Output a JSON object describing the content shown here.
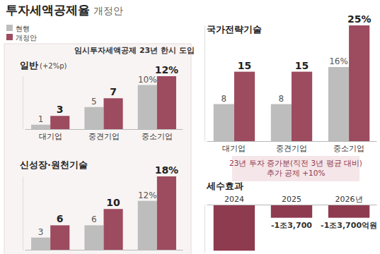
{
  "header": {
    "title": "투자세액공제율",
    "subtitle": "개정안",
    "banner": "임시투자세액공제 23년 한시 도입"
  },
  "chart_data": [
    {
      "type": "bar",
      "title": "일반",
      "subtitle": "(+2%p)",
      "categories": [
        "대기업",
        "중견기업",
        "중소기업"
      ],
      "series": [
        {
          "name": "현행",
          "color": "#bdbdbd",
          "values": [
            1,
            5,
            10
          ],
          "value_labels": [
            "1",
            "5",
            "10%"
          ]
        },
        {
          "name": "개정안",
          "color": "#9d4b5f",
          "values": [
            3,
            7,
            12
          ],
          "value_labels": [
            "3",
            "7",
            "12%"
          ]
        }
      ],
      "ylim": [
        0,
        12
      ],
      "data_labels": true,
      "tick_labels": "x",
      "legend": "top-left"
    },
    {
      "type": "bar",
      "title": "신성장·원천기술",
      "categories": [
        null,
        null,
        null
      ],
      "series": [
        {
          "color": "#bdbdbd",
          "values": [
            3,
            6,
            12
          ],
          "value_labels": [
            "3",
            "6",
            "12%"
          ]
        },
        {
          "color": "#9d4b5f",
          "values": [
            6,
            10,
            18
          ],
          "value_labels": [
            "6",
            "10",
            "18%"
          ]
        }
      ],
      "ylim": [
        0,
        18
      ],
      "data_labels": true,
      "tick_labels": false
    },
    {
      "type": "bar",
      "title": "국가전략기술",
      "categories": [
        "대기업",
        "중견기업",
        "중소기업"
      ],
      "series": [
        {
          "color": "#bdbdbd",
          "values": [
            8,
            8,
            16
          ],
          "value_labels": [
            "8",
            "8",
            "16%"
          ]
        },
        {
          "color": "#9d4b5f",
          "values": [
            15,
            15,
            25
          ],
          "value_labels": [
            "15",
            "15",
            "25%"
          ]
        }
      ],
      "ylim": [
        0,
        25
      ],
      "data_labels": true,
      "tick_labels": "x",
      "annotation": [
        "23년 투자 증가분(직전 3년 평균 대비)",
        "추가 공제 +10%"
      ]
    },
    {
      "type": "bar",
      "title": "세수효과",
      "categories": [
        "2024",
        "2025",
        "2026년"
      ],
      "values": [
        -48000,
        -13700,
        -13700
      ],
      "value_labels": [
        null,
        "-1조3,700",
        "-1조3,700억원"
      ],
      "color": "#8e3a4f",
      "ylim": [
        -50000,
        0
      ],
      "data_labels": true,
      "tick_labels": "x"
    }
  ]
}
